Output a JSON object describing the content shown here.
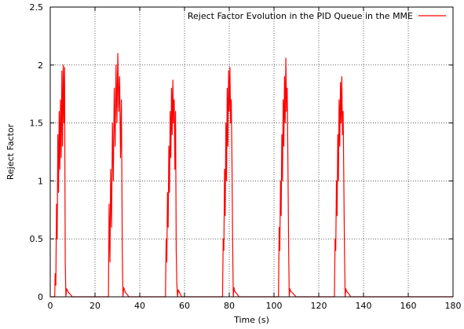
{
  "chart_data": {
    "type": "line",
    "xlabel": "Time (s)",
    "ylabel": "Reject Factor",
    "xlim": [
      0,
      180
    ],
    "ylim": [
      0,
      2.5
    ],
    "x_ticks": [
      0,
      20,
      40,
      60,
      80,
      100,
      120,
      140,
      160,
      180
    ],
    "y_ticks": [
      0,
      0.5,
      1,
      1.5,
      2,
      2.5
    ],
    "y_tick_labels": [
      "0",
      "0.5",
      "1",
      "1.5",
      "2",
      "2.5"
    ],
    "grid": true,
    "legend_position": "top-right",
    "series": [
      {
        "name": "Reject Factor Evolution in the PID Queue in the MME",
        "color": "#ff0000",
        "x": [
          0,
          2.0,
          2.2,
          2.5,
          2.8,
          3.1,
          3.4,
          3.7,
          4.0,
          4.3,
          4.6,
          4.9,
          5.2,
          5.5,
          5.8,
          6.1,
          6.4,
          6.7,
          7.0,
          7.3,
          7.6,
          7.8,
          8.0,
          9.5,
          9.6,
          26.0,
          26.3,
          26.7,
          27.0,
          27.4,
          27.8,
          28.2,
          28.6,
          29.0,
          29.4,
          29.8,
          30.2,
          30.6,
          31.0,
          31.4,
          31.8,
          32.2,
          32.5,
          32.8,
          33.2,
          33.5,
          34.8,
          34.9,
          51.5,
          51.8,
          52.1,
          52.4,
          52.7,
          53.0,
          53.3,
          53.6,
          53.9,
          54.2,
          54.5,
          54.8,
          55.1,
          55.4,
          55.7,
          56.0,
          56.3,
          56.6,
          56.9,
          57.2,
          58.5,
          58.6,
          77.0,
          77.3,
          77.6,
          77.9,
          78.2,
          78.5,
          78.8,
          79.1,
          79.4,
          79.7,
          80.0,
          80.3,
          80.6,
          80.9,
          81.2,
          81.5,
          81.8,
          82.1,
          82.4,
          84.0,
          84.1,
          102.0,
          102.3,
          102.6,
          102.9,
          103.2,
          103.5,
          103.8,
          104.1,
          104.4,
          104.7,
          105.0,
          105.3,
          105.6,
          105.9,
          106.2,
          106.5,
          106.8,
          107.1,
          107.4,
          109.5,
          109.6,
          127.0,
          127.3,
          127.6,
          127.9,
          128.2,
          128.5,
          128.8,
          129.1,
          129.4,
          129.7,
          130.0,
          130.3,
          130.6,
          130.9,
          131.2,
          131.5,
          131.8,
          132.1,
          132.4,
          134.0,
          134.1,
          180
        ],
        "y": [
          0,
          0,
          0.2,
          0.1,
          0.8,
          0.5,
          1.4,
          0.9,
          1.6,
          1.1,
          1.7,
          1.2,
          1.95,
          1.3,
          2.0,
          1.5,
          1.98,
          0.3,
          0,
          0.07,
          0.06,
          0.05,
          0.04,
          0.01,
          0,
          0,
          0.8,
          0.3,
          1.1,
          0.6,
          1.5,
          1.0,
          1.8,
          1.3,
          2.0,
          1.5,
          2.1,
          1.6,
          1.9,
          1.2,
          1.7,
          0.4,
          0,
          0.08,
          0.06,
          0.04,
          0.01,
          0,
          0,
          0.5,
          0.3,
          0.9,
          0.6,
          1.3,
          0.9,
          1.6,
          1.2,
          1.8,
          1.4,
          1.87,
          1.5,
          1.7,
          1.1,
          1.6,
          0.4,
          0.1,
          0,
          0.06,
          0.01,
          0,
          0,
          0.5,
          0.4,
          1.1,
          0.7,
          1.5,
          1.0,
          1.8,
          1.3,
          1.95,
          1.6,
          1.98,
          1.5,
          1.7,
          1.2,
          0.5,
          0,
          0.08,
          0.05,
          0.01,
          0,
          0,
          0.6,
          0.4,
          1.0,
          0.7,
          1.4,
          1.0,
          1.7,
          1.3,
          1.9,
          1.5,
          2.06,
          1.6,
          1.8,
          1.2,
          0.5,
          0,
          0.07,
          0.05,
          0.01,
          0,
          0,
          0.5,
          0.4,
          1.0,
          0.7,
          1.4,
          1.0,
          1.7,
          1.3,
          1.85,
          1.5,
          1.9,
          1.4,
          1.6,
          1.0,
          0.4,
          0,
          0.07,
          0.05,
          0.01,
          0,
          0
        ]
      }
    ]
  }
}
